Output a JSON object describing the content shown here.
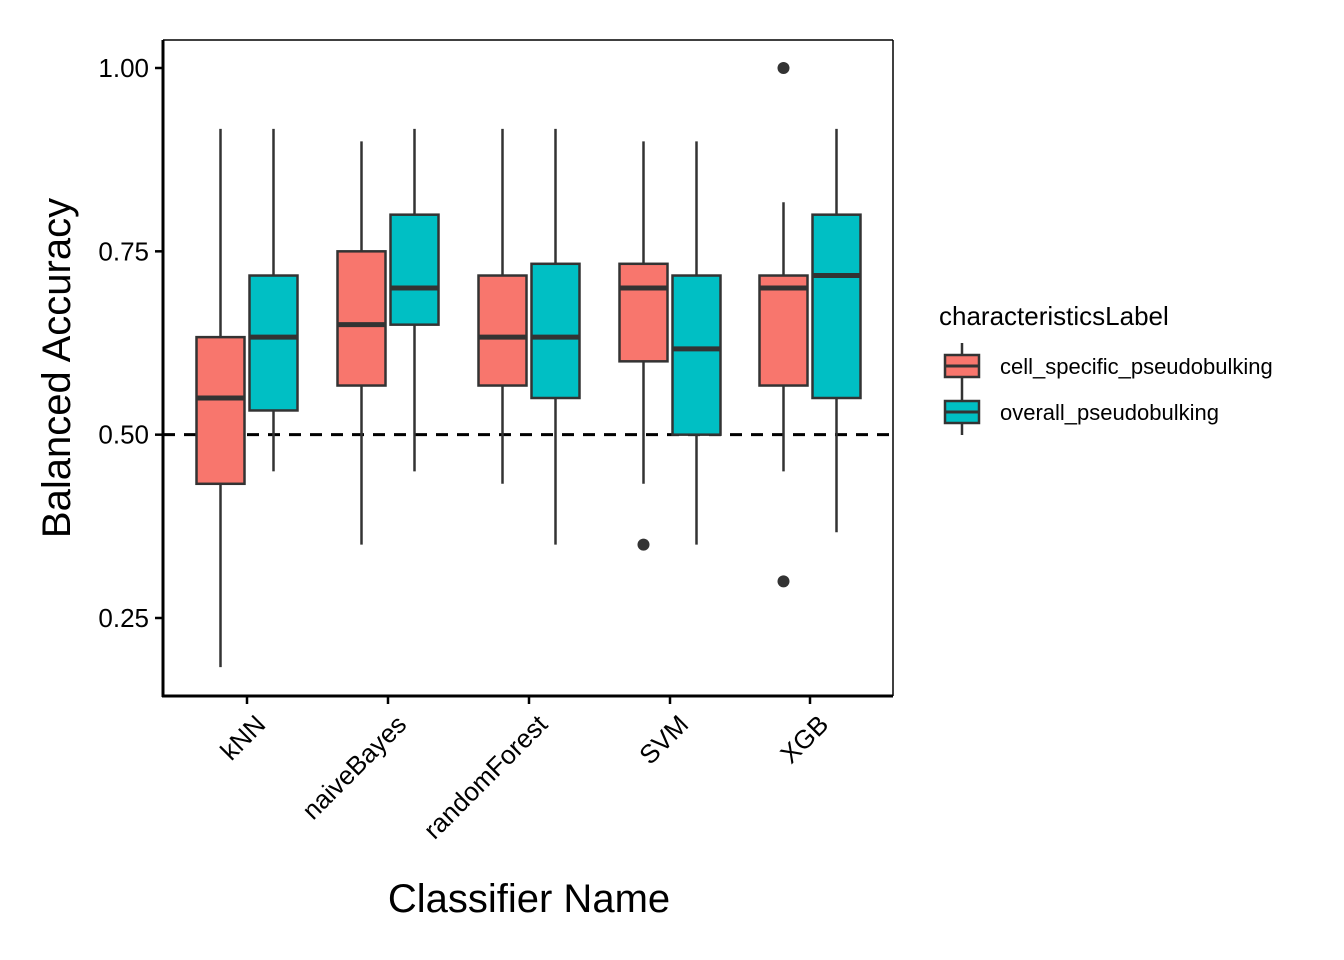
{
  "chart_data": {
    "type": "boxplot",
    "xlabel": "Classifier Name",
    "ylabel": "Balanced Accuracy",
    "categories": [
      "kNN",
      "naiveBayes",
      "randomForest",
      "SVM",
      "XGB"
    ],
    "ylim": [
      0.14,
      1.04
    ],
    "yticks": [
      0.25,
      0.5,
      0.75,
      1.0
    ],
    "ytick_labels": [
      "0.25",
      "0.50",
      "0.75",
      "1.00"
    ],
    "reference_line": {
      "y": 0.5,
      "style": "dashed"
    },
    "grid": false,
    "legend": {
      "title": "characteristicsLabel",
      "position": "right"
    },
    "series": [
      {
        "name": "cell_specific_pseudobulking",
        "color": "#F8766D",
        "boxes": [
          {
            "category": "kNN",
            "whisker_low": 0.183,
            "q1": 0.433,
            "median": 0.55,
            "q3": 0.633,
            "whisker_high": 0.917,
            "outliers": []
          },
          {
            "category": "naiveBayes",
            "whisker_low": 0.35,
            "q1": 0.567,
            "median": 0.65,
            "q3": 0.75,
            "whisker_high": 0.9,
            "outliers": []
          },
          {
            "category": "randomForest",
            "whisker_low": 0.433,
            "q1": 0.567,
            "median": 0.633,
            "q3": 0.717,
            "whisker_high": 0.917,
            "outliers": []
          },
          {
            "category": "SVM",
            "whisker_low": 0.433,
            "q1": 0.6,
            "median": 0.7,
            "q3": 0.733,
            "whisker_high": 0.9,
            "outliers": [
              0.35
            ]
          },
          {
            "category": "XGB",
            "whisker_low": 0.45,
            "q1": 0.567,
            "median": 0.7,
            "q3": 0.717,
            "whisker_high": 0.817,
            "outliers": [
              1.0,
              0.3
            ]
          }
        ]
      },
      {
        "name": "overall_pseudobulking",
        "color": "#00BFC4",
        "boxes": [
          {
            "category": "kNN",
            "whisker_low": 0.45,
            "q1": 0.533,
            "median": 0.633,
            "q3": 0.717,
            "whisker_high": 0.917,
            "outliers": []
          },
          {
            "category": "naiveBayes",
            "whisker_low": 0.45,
            "q1": 0.65,
            "median": 0.7,
            "q3": 0.8,
            "whisker_high": 0.917,
            "outliers": []
          },
          {
            "category": "randomForest",
            "whisker_low": 0.35,
            "q1": 0.55,
            "median": 0.633,
            "q3": 0.733,
            "whisker_high": 0.917,
            "outliers": []
          },
          {
            "category": "SVM",
            "whisker_low": 0.35,
            "q1": 0.5,
            "median": 0.617,
            "q3": 0.717,
            "whisker_high": 0.9,
            "outliers": []
          },
          {
            "category": "XGB",
            "whisker_low": 0.367,
            "q1": 0.55,
            "median": 0.717,
            "q3": 0.8,
            "whisker_high": 0.917,
            "outliers": []
          }
        ]
      }
    ]
  }
}
